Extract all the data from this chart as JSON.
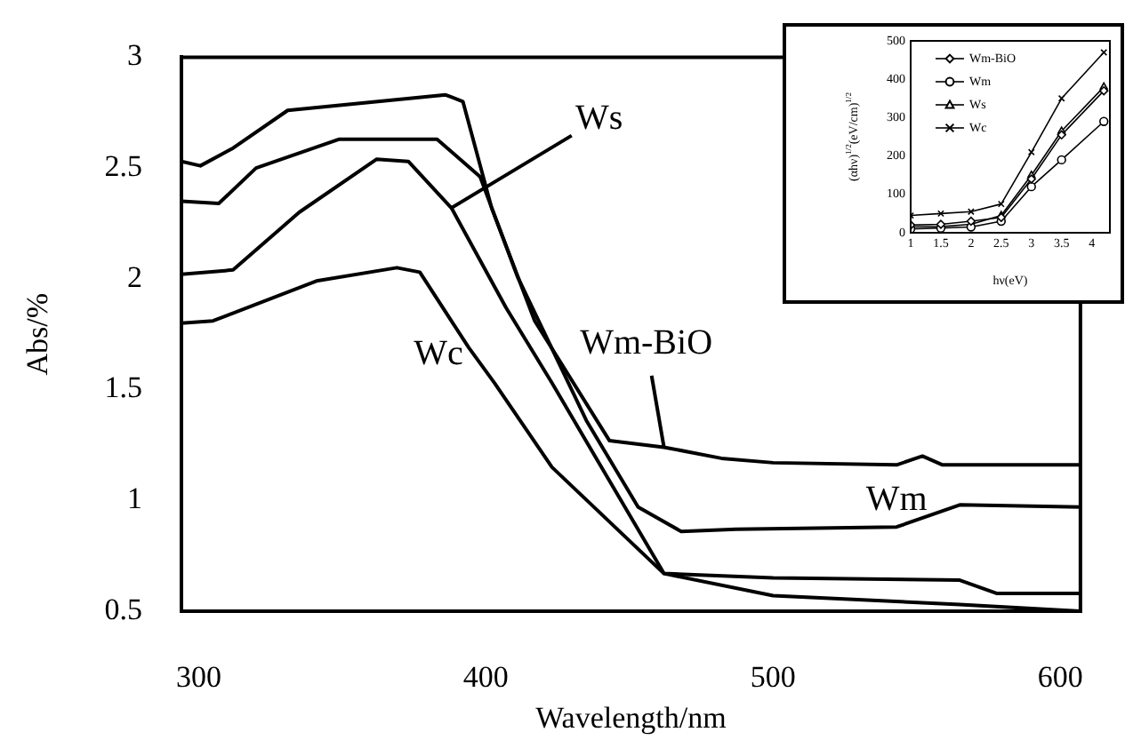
{
  "chart_data": [
    {
      "type": "line",
      "xlabel": "Wavelength/nm",
      "ylabel": "Abs/%",
      "xlim": [
        294,
        607
      ],
      "xticks": [
        300,
        400,
        500,
        600
      ],
      "ylim": [
        0.5,
        3
      ],
      "yticks": [
        0.5,
        1,
        1.5,
        2,
        2.5,
        3
      ],
      "legend": false,
      "marker": "none",
      "series": [
        {
          "name": "Wm-BiO",
          "color": "#000000",
          "x": [
            294,
            300.6,
            312,
            331,
            386,
            392,
            402,
            417,
            443,
            462,
            482,
            500,
            543,
            552,
            559,
            607
          ],
          "values": [
            2.53,
            2.51,
            2.59,
            2.76,
            2.83,
            2.8,
            2.32,
            1.81,
            1.27,
            1.24,
            1.19,
            1.17,
            1.16,
            1.2,
            1.16,
            1.16
          ]
        },
        {
          "name": "Wm",
          "color": "#000000",
          "x": [
            294,
            307,
            320,
            349,
            383,
            398,
            411,
            435,
            453,
            468,
            487,
            543,
            565,
            607
          ],
          "values": [
            2.35,
            2.34,
            2.5,
            2.63,
            2.63,
            2.46,
            2.01,
            1.36,
            0.97,
            0.86,
            0.87,
            0.88,
            0.98,
            0.97
          ]
        },
        {
          "name": "Ws",
          "color": "#000000",
          "x": [
            294,
            312,
            335,
            362,
            373,
            388,
            407,
            423,
            462,
            500,
            565,
            578,
            607
          ],
          "values": [
            2.02,
            2.04,
            2.3,
            2.54,
            2.53,
            2.32,
            1.87,
            1.53,
            0.67,
            0.65,
            0.64,
            0.58,
            0.58
          ]
        },
        {
          "name": "Wc",
          "color": "#000000",
          "x": [
            294,
            305,
            341,
            369,
            377,
            394,
            403,
            423,
            462,
            500,
            565,
            607
          ],
          "values": [
            1.8,
            1.81,
            1.99,
            2.05,
            2.03,
            1.69,
            1.53,
            1.15,
            0.67,
            0.57,
            0.53,
            0.5
          ]
        }
      ]
    },
    {
      "type": "line",
      "xlabel": "hν(eV)",
      "ylabel": "(αhν)$^{1/2}$(eV/cm)$^{1/2}$",
      "xlim": [
        1,
        4.3
      ],
      "xticks": [
        1,
        1.5,
        2,
        2.5,
        3,
        3.5,
        4
      ],
      "ylim": [
        0,
        500
      ],
      "yticks": [
        0,
        100,
        200,
        300,
        400,
        500
      ],
      "legend": "top left",
      "x": [
        1,
        1.5,
        2,
        2.5,
        3,
        3.5,
        4.2
      ],
      "series": [
        {
          "name": "Wm-BiO",
          "color": "#000000",
          "marker": "diamond",
          "values": [
            20,
            22,
            30,
            40,
            140,
            255,
            370
          ]
        },
        {
          "name": "Wm",
          "color": "#000000",
          "marker": "circle",
          "values": [
            10,
            12,
            15,
            30,
            120,
            190,
            290
          ]
        },
        {
          "name": "Ws",
          "color": "#000000",
          "marker": "triangle",
          "values": [
            15,
            16,
            22,
            45,
            150,
            265,
            380
          ]
        },
        {
          "name": "Wc",
          "color": "#000000",
          "marker": "cross",
          "values": [
            45,
            50,
            55,
            75,
            210,
            350,
            470
          ]
        }
      ]
    }
  ]
}
